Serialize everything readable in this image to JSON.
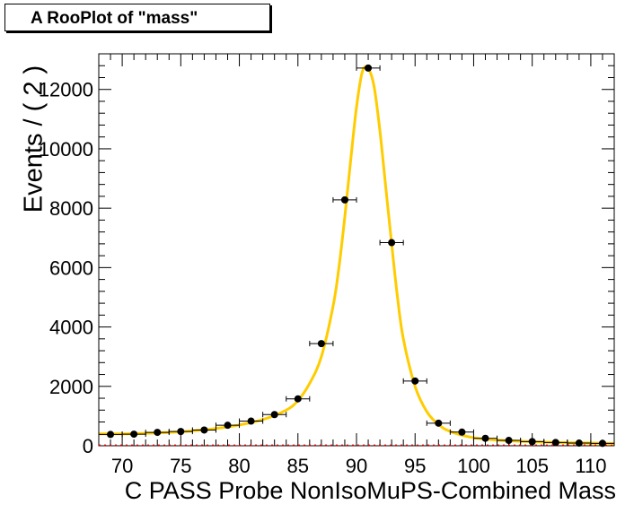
{
  "chart_data": {
    "type": "scatter",
    "title": "A RooPlot of \"mass\"",
    "xlabel": "C PASS  Probe NonIsoMuPS-Combined       Mass",
    "ylabel": "Events / ( 2 )",
    "xlim": [
      68,
      112
    ],
    "ylim": [
      0,
      13200
    ],
    "x_ticks": [
      70,
      75,
      80,
      85,
      90,
      95,
      100,
      105,
      110
    ],
    "y_ticks": [
      0,
      2000,
      4000,
      6000,
      8000,
      10000,
      12000
    ],
    "grid": false,
    "colors": {
      "fit": "#ffcc00",
      "points": "#000000",
      "background": "#cc0000"
    },
    "series": [
      {
        "kind": "points",
        "x": [
          69,
          71,
          73,
          75,
          77,
          79,
          81,
          83,
          85,
          87,
          89,
          91,
          93,
          95,
          97,
          99,
          101,
          103,
          105,
          107,
          109,
          111
        ],
        "y": [
          380,
          390,
          450,
          480,
          530,
          690,
          830,
          1050,
          1580,
          3440,
          8280,
          12720,
          6840,
          2180,
          760,
          460,
          250,
          180,
          140,
          110,
          90,
          80
        ]
      },
      {
        "kind": "curve",
        "x": [
          68,
          70,
          72,
          74,
          76,
          78,
          80,
          82,
          84,
          85,
          86,
          87,
          88,
          88.5,
          89,
          89.5,
          90,
          90.5,
          91,
          91.5,
          92,
          92.5,
          93,
          93.5,
          94,
          95,
          96,
          97,
          98,
          100,
          102,
          104,
          106,
          108,
          110,
          112
        ],
        "y": [
          400,
          400,
          420,
          450,
          500,
          580,
          700,
          880,
          1200,
          1520,
          2100,
          3000,
          4700,
          6000,
          7700,
          9600,
          11400,
          12600,
          12700,
          12100,
          10600,
          8700,
          6800,
          5000,
          3600,
          2000,
          1150,
          720,
          480,
          270,
          190,
          150,
          120,
          100,
          90,
          80
        ]
      },
      {
        "kind": "background",
        "x": [
          68,
          112
        ],
        "y": [
          12,
          12
        ]
      }
    ]
  }
}
